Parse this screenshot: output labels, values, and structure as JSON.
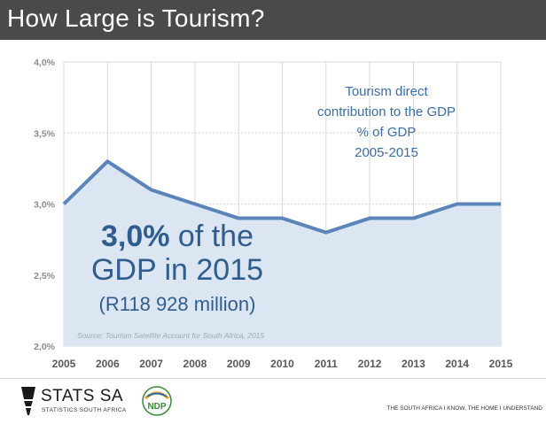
{
  "header": {
    "title": "How Large is Tourism?"
  },
  "chart_data": {
    "type": "area",
    "x": [
      2005,
      2006,
      2007,
      2008,
      2009,
      2010,
      2011,
      2012,
      2013,
      2014,
      2015
    ],
    "series": [
      {
        "values": [
          3.0,
          3.3,
          3.1,
          3.0,
          2.9,
          2.9,
          2.8,
          2.9,
          2.9,
          3.0,
          3.0
        ]
      }
    ],
    "ylim": [
      2.0,
      4.0
    ],
    "yticks": [
      "2,0%",
      "2,5%",
      "3,0%",
      "3,5%",
      "4,0%"
    ],
    "yticks_values": [
      2.0,
      2.5,
      3.0,
      3.5,
      4.0
    ],
    "xticks": [
      "2005",
      "2006",
      "2007",
      "2008",
      "2009",
      "2010",
      "2011",
      "2012",
      "2013",
      "2014",
      "2015"
    ],
    "title_lines": [
      "Tourism direct",
      "contribution to the GDP",
      "% of GDP",
      "2005-2015"
    ],
    "highlight": {
      "bold": "3,0%",
      "line1_rest": " of the",
      "line2": "GDP in 2015",
      "line3": "(R118 928 million)"
    },
    "source": "Source: Tourism Satellite Account for South Africa, 2015",
    "grid": true,
    "colors": {
      "line": "#5b85b8",
      "fill": "#dce6f2",
      "text": "#2e5d8e",
      "title": "#3a6ea5"
    }
  },
  "footer": {
    "logo_name": "STATS SA",
    "logo_sub": "STATISTICS SOUTH AFRICA",
    "ndp": "NDP",
    "tagline": "THE SOUTH AFRICA I KNOW, THE HOME I UNDERSTAND"
  }
}
